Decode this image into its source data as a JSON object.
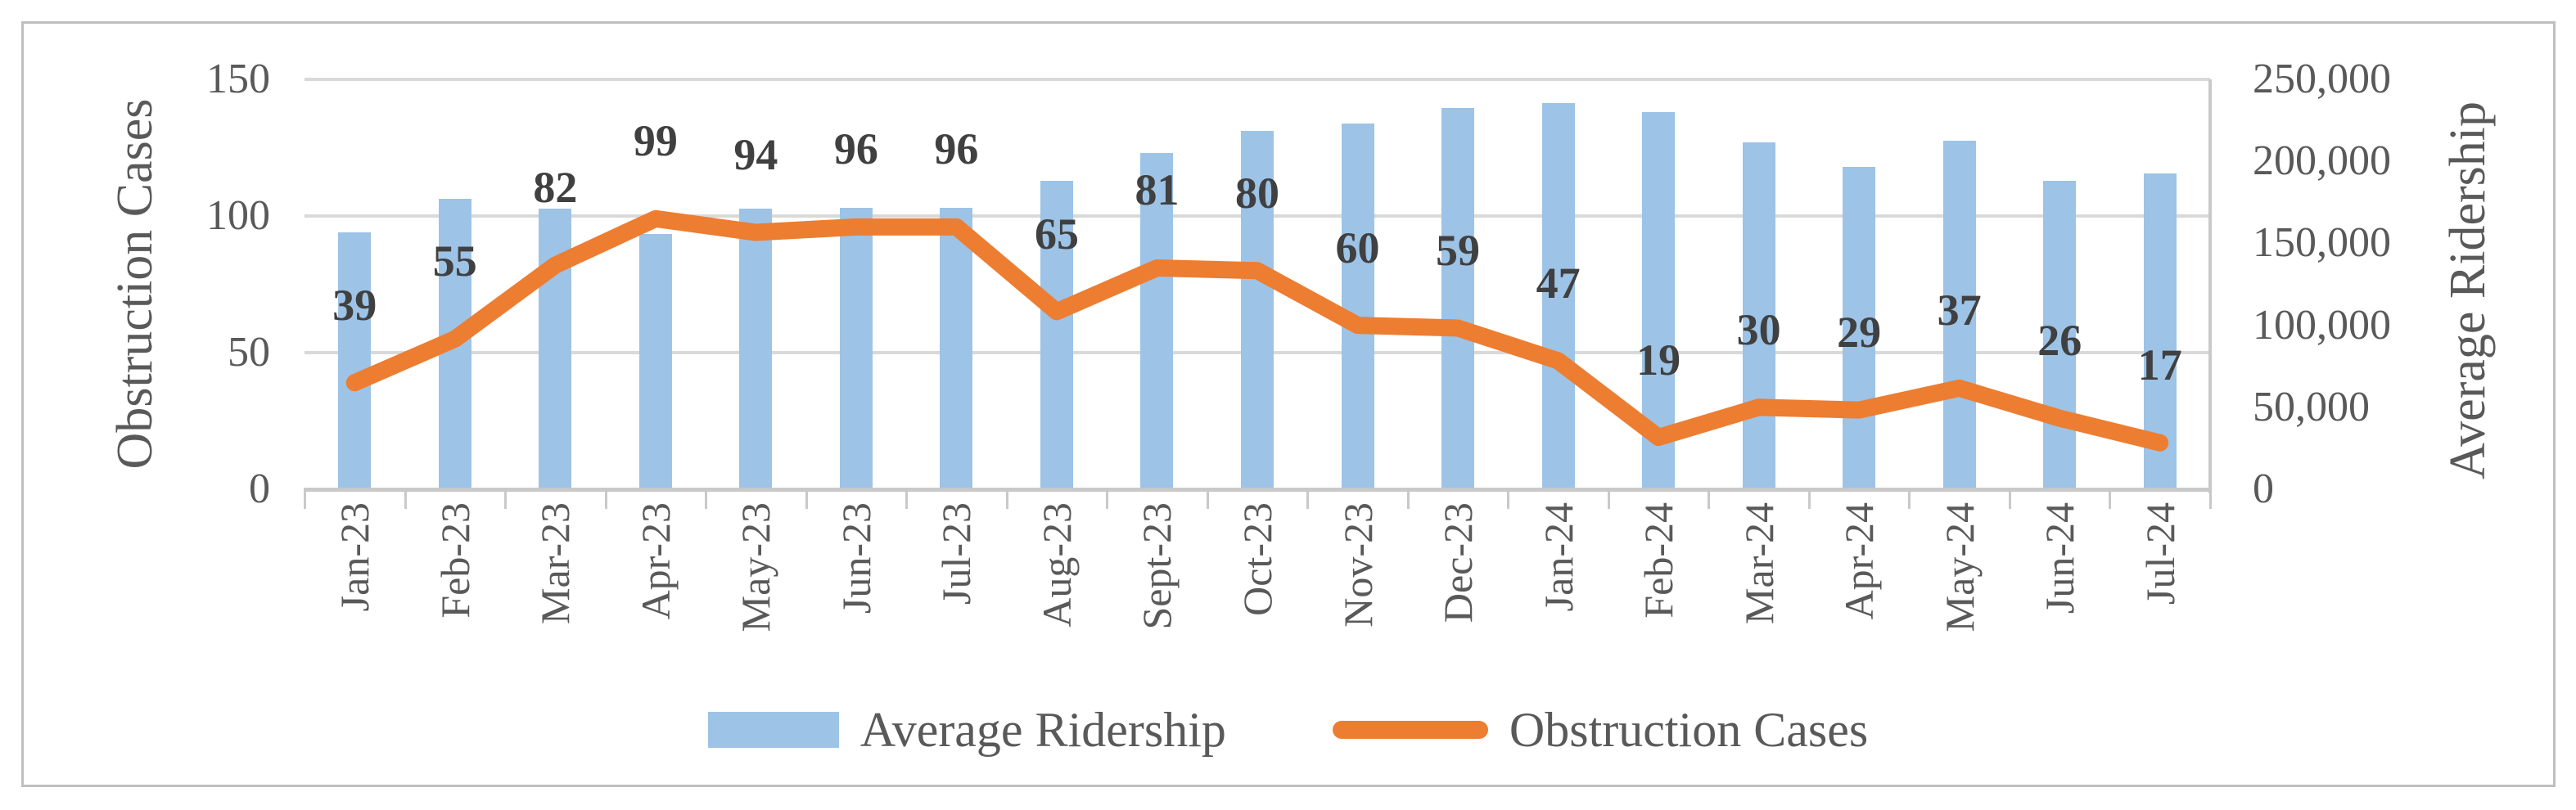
{
  "chart_data": {
    "type": "bar",
    "subtype": "combo-bar-line-dual-axis",
    "categories": [
      "Jan-23",
      "Feb-23",
      "Mar-23",
      "Apr-23",
      "May-23",
      "Jun-23",
      "Jul-23",
      "Aug-23",
      "Sept-23",
      "Oct-23",
      "Nov-23",
      "Dec-23",
      "Jan-24",
      "Feb-24",
      "Mar-24",
      "Apr-24",
      "May-24",
      "Jun-24",
      "Jul-24"
    ],
    "series": [
      {
        "name": "Average Ridership",
        "type": "bar",
        "axis": "right",
        "color": "#9dc3e6",
        "values": [
          156500,
          177000,
          171000,
          155500,
          171000,
          171500,
          171500,
          188000,
          205000,
          218500,
          223000,
          232500,
          235500,
          230000,
          211500,
          196500,
          212500,
          188000,
          192500
        ]
      },
      {
        "name": "Obstruction Cases",
        "type": "line",
        "axis": "left",
        "color": "#ed7d31",
        "data_labels": true,
        "values": [
          39,
          55,
          82,
          99,
          94,
          96,
          96,
          65,
          81,
          80,
          60,
          59,
          47,
          19,
          30,
          29,
          37,
          26,
          17
        ]
      }
    ],
    "left_axis": {
      "title": "Obstruction Cases",
      "min": 0,
      "max": 150,
      "ticks": [
        "0",
        "50",
        "100",
        "150"
      ]
    },
    "right_axis": {
      "title": "Average Ridership",
      "min": 0,
      "max": 250000,
      "ticks": [
        "0",
        "50,000",
        "100,000",
        "150,000",
        "200,000",
        "250,000"
      ]
    },
    "legend": [
      "Average Ridership",
      "Obstruction Cases"
    ],
    "legend_position": "bottom",
    "grid": true
  },
  "colors": {
    "bar_fill": "#9dc3e6",
    "line_stroke": "#ed7d31",
    "gridline": "#d9d9d9",
    "axis_line": "#c9c9c9",
    "axis_text": "#595959",
    "data_label_text": "#404040",
    "frame_border": "#bfbfbf",
    "background": "#ffffff"
  }
}
